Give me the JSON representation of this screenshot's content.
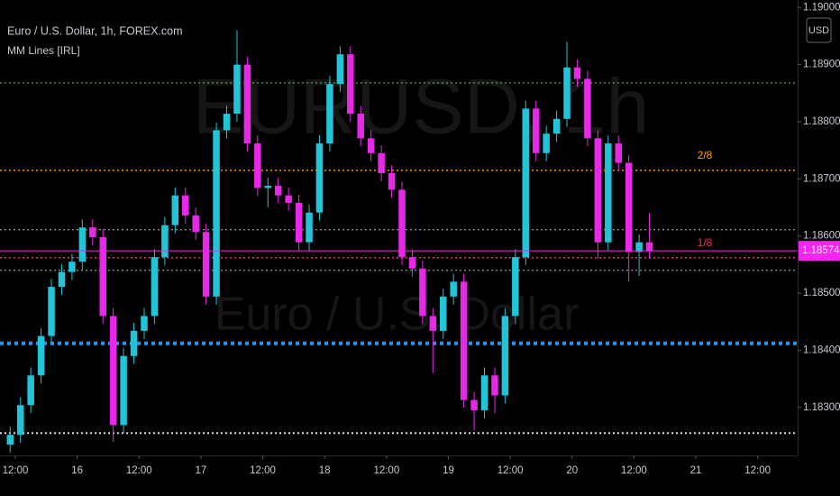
{
  "chart_data": {
    "type": "candlestick",
    "title": "Euro / U.S. Dollar, 1h, FOREX.com",
    "indicator": "MM Lines [IRL]",
    "watermark": {
      "symbol": "EURUSD, 1h",
      "description": "Euro / U.S. Dollar"
    },
    "currency": "USD",
    "x": [
      -1,
      1,
      3,
      5,
      7,
      9,
      11,
      13,
      15,
      17,
      19,
      21,
      23,
      25,
      27,
      29,
      31,
      33,
      35,
      37,
      39,
      41,
      43,
      45,
      47,
      49,
      51,
      53,
      55,
      57,
      59,
      61,
      63,
      65,
      67,
      69,
      71,
      73,
      75,
      77,
      79,
      81,
      83,
      85,
      87,
      89,
      91,
      93,
      95,
      97,
      99,
      101,
      103,
      105,
      107,
      109,
      111,
      113,
      115,
      117,
      119,
      121,
      123
    ],
    "open": [
      1.18235,
      1.18252,
      1.18304,
      1.18356,
      1.18425,
      1.18511,
      1.18537,
      1.18555,
      1.18615,
      1.18598,
      1.1846,
      1.18269,
      1.1839,
      1.18434,
      1.1846,
      1.18563,
      1.18619,
      1.18671,
      1.18636,
      1.18607,
      1.18494,
      1.18785,
      1.18814,
      1.189,
      1.18762,
      1.18684,
      1.18688,
      1.18671,
      1.18658,
      1.18589,
      1.18641,
      1.18762,
      1.18866,
      1.18918,
      1.18814,
      1.18771,
      1.18745,
      1.1871,
      1.18681,
      1.18563,
      1.18543,
      1.1846,
      1.18434,
      1.18494,
      1.1852,
      1.18313,
      1.18295,
      1.18356,
      1.18321,
      1.1846,
      1.18563,
      1.18823,
      1.18745,
      1.18779,
      1.18805,
      1.18895,
      1.18875,
      1.18771,
      1.18589,
      1.18762,
      1.18728,
      1.18572,
      1.18589
    ],
    "high": [
      1.18266,
      1.18318,
      1.1837,
      1.18439,
      1.18525,
      1.18551,
      1.18569,
      1.18629,
      1.18629,
      1.18612,
      1.18474,
      1.18404,
      1.18448,
      1.18474,
      1.18577,
      1.18633,
      1.18685,
      1.18685,
      1.1865,
      1.18621,
      1.18799,
      1.18828,
      1.1896,
      1.18914,
      1.18776,
      1.18702,
      1.18702,
      1.18685,
      1.18672,
      1.18655,
      1.18776,
      1.1888,
      1.18932,
      1.18932,
      1.18828,
      1.18785,
      1.18759,
      1.18724,
      1.18695,
      1.18577,
      1.18557,
      1.18474,
      1.18508,
      1.18534,
      1.18534,
      1.18327,
      1.1837,
      1.1837,
      1.18474,
      1.18577,
      1.18837,
      1.18837,
      1.18793,
      1.18819,
      1.1894,
      1.18909,
      1.18889,
      1.18785,
      1.18776,
      1.18776,
      1.18742,
      1.18603,
      1.1864
    ],
    "low": [
      1.18221,
      1.18238,
      1.1829,
      1.18342,
      1.18411,
      1.18497,
      1.18523,
      1.18541,
      1.18584,
      1.18446,
      1.1824,
      1.18255,
      1.18376,
      1.1842,
      1.18446,
      1.18549,
      1.18605,
      1.18622,
      1.18593,
      1.1848,
      1.1848,
      1.18771,
      1.188,
      1.18748,
      1.1867,
      1.1865,
      1.18657,
      1.18644,
      1.18575,
      1.18575,
      1.18627,
      1.18748,
      1.18852,
      1.188,
      1.18757,
      1.18731,
      1.18696,
      1.18667,
      1.18549,
      1.18529,
      1.18446,
      1.1836,
      1.1842,
      1.1848,
      1.18299,
      1.1826,
      1.18281,
      1.1829,
      1.18307,
      1.18446,
      1.18549,
      1.18731,
      1.18731,
      1.18765,
      1.18791,
      1.18861,
      1.18757,
      1.1856,
      1.18575,
      1.18714,
      1.1852,
      1.1853,
      1.1856
    ],
    "close": [
      1.18252,
      1.18304,
      1.18356,
      1.18425,
      1.18511,
      1.18537,
      1.18555,
      1.18615,
      1.18598,
      1.1846,
      1.18269,
      1.1839,
      1.18434,
      1.1846,
      1.18563,
      1.18619,
      1.18671,
      1.18636,
      1.18607,
      1.18494,
      1.18785,
      1.18814,
      1.189,
      1.18762,
      1.18684,
      1.18688,
      1.18671,
      1.18658,
      1.18589,
      1.18641,
      1.18762,
      1.18866,
      1.18918,
      1.18814,
      1.18771,
      1.18745,
      1.1871,
      1.18681,
      1.18563,
      1.18543,
      1.1846,
      1.18434,
      1.18494,
      1.1852,
      1.18313,
      1.18295,
      1.18356,
      1.18321,
      1.1846,
      1.18563,
      1.18823,
      1.18745,
      1.18779,
      1.18805,
      1.18895,
      1.18875,
      1.18771,
      1.18589,
      1.18762,
      1.18728,
      1.18572,
      1.18589,
      1.18574
    ],
    "up_color": "#22c4d8",
    "down_color": "#e629e6",
    "last_price_color": "#f724f1",
    "xlim": [
      -2.97,
      151.75
    ],
    "xticks": [
      {
        "value": 0,
        "label": "12:00"
      },
      {
        "value": 12,
        "label": "16"
      },
      {
        "value": 24,
        "label": "12:00"
      },
      {
        "value": 36,
        "label": "17"
      },
      {
        "value": 48,
        "label": "12:00"
      },
      {
        "value": 60,
        "label": "18"
      },
      {
        "value": 72,
        "label": "12:00"
      },
      {
        "value": 84,
        "label": "19"
      },
      {
        "value": 96,
        "label": "12:00"
      },
      {
        "value": 108,
        "label": "20"
      },
      {
        "value": 120,
        "label": "12:00"
      },
      {
        "value": 132,
        "label": "21"
      },
      {
        "value": 144,
        "label": "12:00"
      }
    ],
    "ylim": [
      1.18216,
      1.19013
    ],
    "yticks": [
      {
        "value": 1.183,
        "label": "1.18300"
      },
      {
        "value": 1.184,
        "label": "1.18400"
      },
      {
        "value": 1.185,
        "label": "1.18500"
      },
      {
        "value": 1.186,
        "label": "1.18600"
      },
      {
        "value": 1.187,
        "label": "1.18700"
      },
      {
        "value": 1.188,
        "label": "1.18800"
      },
      {
        "value": 1.189,
        "label": "1.18900"
      },
      {
        "value": 1.19,
        "label": "1.19000"
      }
    ],
    "levels": [
      {
        "value": 1.18868,
        "color": "#4caf50",
        "width": 1.3
      },
      {
        "value": 1.18715,
        "color": "#ff9800",
        "width": 1.5,
        "label": "2/8"
      },
      {
        "value": 1.18611,
        "color": "#bbbbbb",
        "width": 1
      },
      {
        "value": 1.18562,
        "color": "#e53950",
        "width": 1.5,
        "label": "1/8"
      },
      {
        "value": 1.1854,
        "color": "#bbbbbb",
        "width": 1
      },
      {
        "value": 1.18412,
        "color": "#2196f3",
        "width": 4
      },
      {
        "value": 1.18255,
        "color": "#dddddd",
        "width": 2
      }
    ]
  }
}
